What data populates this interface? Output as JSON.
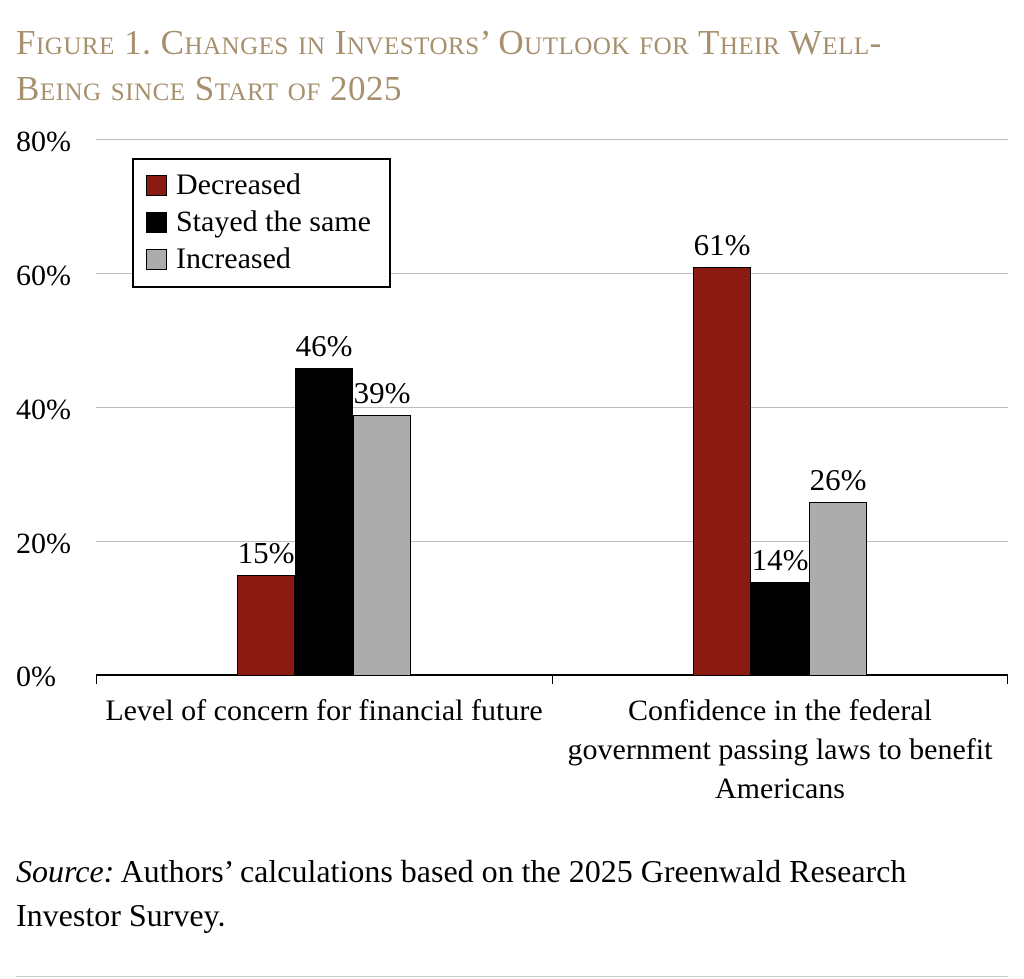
{
  "title": "Figure 1. Changes in Investors’ Outlook for Their Well-Being since Start of 2025",
  "source_label": "Source:",
  "source_text": " Authors’ calculations based on the 2025 Greenwald Research Investor Survey.",
  "chart_data": {
    "type": "bar",
    "title": "Figure 1. Changes in Investors’ Outlook for Their Well-Being since Start of 2025",
    "categories": [
      "Level of concern for financial future",
      "Confidence in the federal government passing laws to benefit Americans"
    ],
    "series": [
      {
        "name": "Decreased",
        "color": "#8B1A12",
        "values": [
          15,
          61
        ]
      },
      {
        "name": "Stayed the same",
        "color": "#000000",
        "values": [
          46,
          14
        ]
      },
      {
        "name": "Increased",
        "color": "#ACACAC",
        "values": [
          39,
          26
        ]
      }
    ],
    "data_labels": [
      "15%",
      "46%",
      "39%",
      "61%",
      "14%",
      "26%"
    ],
    "ylim": [
      0,
      80
    ],
    "yticks": [
      0,
      20,
      40,
      60,
      80
    ],
    "ytick_format": "percent",
    "grid": true,
    "legend_position": "top-left",
    "xlabel": "",
    "ylabel": ""
  }
}
